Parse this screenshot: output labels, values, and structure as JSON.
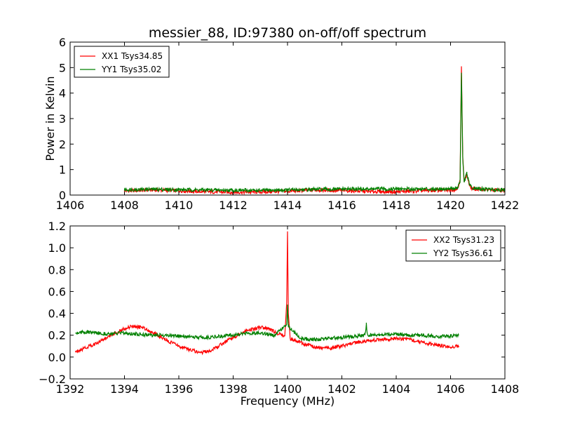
{
  "title": "messier_88, ID:97380 on-off/off spectrum",
  "chart_data": [
    {
      "type": "line",
      "title": "messier_88, ID:97380 on-off/off spectrum",
      "xlabel": "",
      "ylabel": "Power in Kelvin",
      "xlim": [
        1406,
        1422
      ],
      "ylim": [
        0,
        6
      ],
      "xticks": [
        "1406",
        "1408",
        "1410",
        "1412",
        "1414",
        "1416",
        "1418",
        "1420",
        "1422"
      ],
      "yticks": [
        "0",
        "1",
        "2",
        "3",
        "4",
        "5",
        "6"
      ],
      "legend_position": "top-left",
      "series": [
        {
          "name": "XX1 Tsys34.85",
          "color": "#ff0000",
          "x": [
            1408.0,
            1409.0,
            1410.0,
            1411.0,
            1412.0,
            1413.0,
            1414.0,
            1415.0,
            1416.0,
            1417.0,
            1418.0,
            1419.0,
            1420.0,
            1420.25,
            1420.35,
            1420.4,
            1420.45,
            1420.5,
            1420.6,
            1420.7,
            1420.8,
            1421.0,
            1421.5,
            1422.0
          ],
          "y": [
            0.16,
            0.2,
            0.17,
            0.13,
            0.11,
            0.12,
            0.15,
            0.2,
            0.18,
            0.14,
            0.13,
            0.17,
            0.2,
            0.24,
            0.6,
            5.05,
            1.5,
            0.55,
            0.8,
            0.35,
            0.24,
            0.23,
            0.2,
            0.18
          ]
        },
        {
          "name": "YY1 Tsys35.02",
          "color": "#008000",
          "x": [
            1408.0,
            1409.0,
            1410.0,
            1411.0,
            1412.0,
            1413.0,
            1414.0,
            1415.0,
            1416.0,
            1417.0,
            1418.0,
            1419.0,
            1420.0,
            1420.25,
            1420.35,
            1420.4,
            1420.45,
            1420.5,
            1420.6,
            1420.7,
            1420.8,
            1421.0,
            1421.5,
            1422.0
          ],
          "y": [
            0.21,
            0.23,
            0.21,
            0.2,
            0.19,
            0.18,
            0.2,
            0.22,
            0.23,
            0.24,
            0.24,
            0.24,
            0.25,
            0.27,
            0.5,
            4.8,
            1.4,
            0.5,
            0.85,
            0.4,
            0.27,
            0.25,
            0.22,
            0.2
          ]
        }
      ]
    },
    {
      "type": "line",
      "title": "",
      "xlabel": "Frequency (MHz)",
      "ylabel": "",
      "xlim": [
        1392,
        1408
      ],
      "ylim": [
        -0.2,
        1.2
      ],
      "xticks": [
        "1392",
        "1394",
        "1396",
        "1398",
        "1400",
        "1402",
        "1404",
        "1406",
        "1408"
      ],
      "yticks": [
        "−0.2",
        "0.0",
        "0.2",
        "0.4",
        "0.6",
        "0.8",
        "1.0",
        "1.2"
      ],
      "legend_position": "top-right",
      "series": [
        {
          "name": "XX2 Tsys31.23",
          "color": "#ff0000",
          "x": [
            1392.2,
            1392.5,
            1393.0,
            1393.5,
            1394.0,
            1394.3,
            1394.7,
            1395.0,
            1395.5,
            1396.0,
            1396.5,
            1396.8,
            1397.2,
            1397.6,
            1398.0,
            1398.5,
            1399.0,
            1399.3,
            1399.6,
            1399.9,
            1399.97,
            1400.0,
            1400.03,
            1400.1,
            1400.3,
            1400.6,
            1401.0,
            1401.5,
            1402.0,
            1402.5,
            1403.0,
            1403.5,
            1404.0,
            1404.5,
            1405.0,
            1405.5,
            1406.0,
            1406.3
          ],
          "y": [
            0.05,
            0.08,
            0.13,
            0.2,
            0.26,
            0.28,
            0.27,
            0.23,
            0.16,
            0.1,
            0.06,
            0.04,
            0.06,
            0.12,
            0.18,
            0.24,
            0.27,
            0.26,
            0.22,
            0.19,
            0.5,
            1.15,
            0.4,
            0.17,
            0.15,
            0.12,
            0.09,
            0.08,
            0.1,
            0.13,
            0.15,
            0.16,
            0.17,
            0.16,
            0.13,
            0.11,
            0.09,
            0.1
          ]
        },
        {
          "name": "YY2 Tsys36.61",
          "color": "#008000",
          "x": [
            1392.2,
            1392.5,
            1393.0,
            1393.5,
            1394.0,
            1394.5,
            1395.0,
            1395.5,
            1396.0,
            1396.5,
            1397.0,
            1397.5,
            1398.0,
            1398.5,
            1399.0,
            1399.5,
            1399.97,
            1400.0,
            1400.03,
            1400.5,
            1401.0,
            1401.5,
            1402.0,
            1402.5,
            1402.85,
            1402.9,
            1402.95,
            1403.5,
            1404.0,
            1404.5,
            1405.0,
            1405.5,
            1406.0,
            1406.3
          ],
          "y": [
            0.22,
            0.23,
            0.22,
            0.21,
            0.22,
            0.21,
            0.2,
            0.2,
            0.19,
            0.18,
            0.18,
            0.19,
            0.2,
            0.22,
            0.22,
            0.2,
            0.3,
            0.48,
            0.28,
            0.17,
            0.16,
            0.17,
            0.18,
            0.19,
            0.2,
            0.3,
            0.2,
            0.21,
            0.21,
            0.2,
            0.2,
            0.19,
            0.19,
            0.2
          ]
        }
      ]
    }
  ]
}
